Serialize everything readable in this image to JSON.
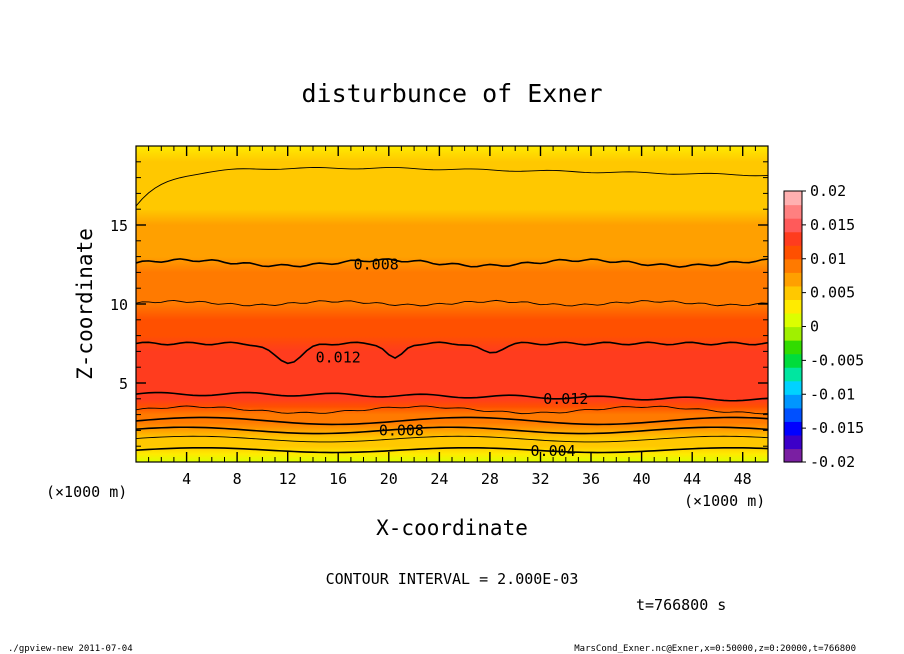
{
  "chart_data": {
    "type": "heatmap",
    "title": "disturbunce of Exner",
    "xlabel": "X-coordinate",
    "ylabel": "Z-coordinate",
    "x_unit": "(×1000 m)",
    "y_unit": "(×1000 m)",
    "xlim": [
      0,
      50
    ],
    "ylim": [
      0,
      20
    ],
    "x_ticks": [
      4,
      8,
      12,
      16,
      20,
      24,
      28,
      32,
      36,
      40,
      44,
      48
    ],
    "y_ticks": [
      5,
      10,
      15
    ],
    "colorbar": {
      "ticks": [
        "0.02",
        "0.015",
        "0.01",
        "0.005",
        "0",
        "-0.005",
        "-0.01",
        "-0.015",
        "-0.02"
      ],
      "range": [
        -0.02,
        0.02
      ],
      "colors": [
        "#7a1fa2",
        "#3c00c8",
        "#0000ff",
        "#0050ff",
        "#0096ff",
        "#00d2ff",
        "#00e6a0",
        "#00dc3c",
        "#32dc00",
        "#a0f000",
        "#dcff00",
        "#ffeb00",
        "#ffc800",
        "#ffa000",
        "#ff7a00",
        "#ff5000",
        "#ff3c1e",
        "#ff5a5a",
        "#ff8080",
        "#ffb0b0"
      ]
    },
    "profile": {
      "z": [
        0,
        0.5,
        1,
        1.5,
        2,
        2.5,
        3,
        3.5,
        4,
        4.5,
        5,
        6,
        7,
        8,
        9,
        10,
        11,
        12,
        13,
        14,
        15,
        16,
        17,
        18,
        19,
        20
      ],
      "value": [
        0.002,
        0.0035,
        0.0045,
        0.0058,
        0.0072,
        0.0085,
        0.0098,
        0.011,
        0.012,
        0.0128,
        0.0132,
        0.0134,
        0.0128,
        0.0118,
        0.0108,
        0.0098,
        0.0092,
        0.0084,
        0.0076,
        0.007,
        0.0064,
        0.0058,
        0.005,
        0.0044,
        0.004,
        0.0036
      ]
    },
    "contour_labels": [
      {
        "text": "0.008",
        "x": 19,
        "z": 12.5
      },
      {
        "text": "0.012",
        "x": 16,
        "z": 6.6
      },
      {
        "text": "0.012",
        "x": 34,
        "z": 4.0
      },
      {
        "text": "0.008",
        "x": 21,
        "z": 2.0
      },
      {
        "text": "0.004",
        "x": 33,
        "z": 0.7
      }
    ],
    "annotations": {
      "contour_interval": "CONTOUR INTERVAL = 2.000E-03",
      "time": "t=766800 s"
    }
  },
  "footer": {
    "left": "./gpview-new   2011-07-04",
    "right": "MarsCond_Exner.nc@Exner,x=0:50000,z=0:20000,t=766800"
  }
}
